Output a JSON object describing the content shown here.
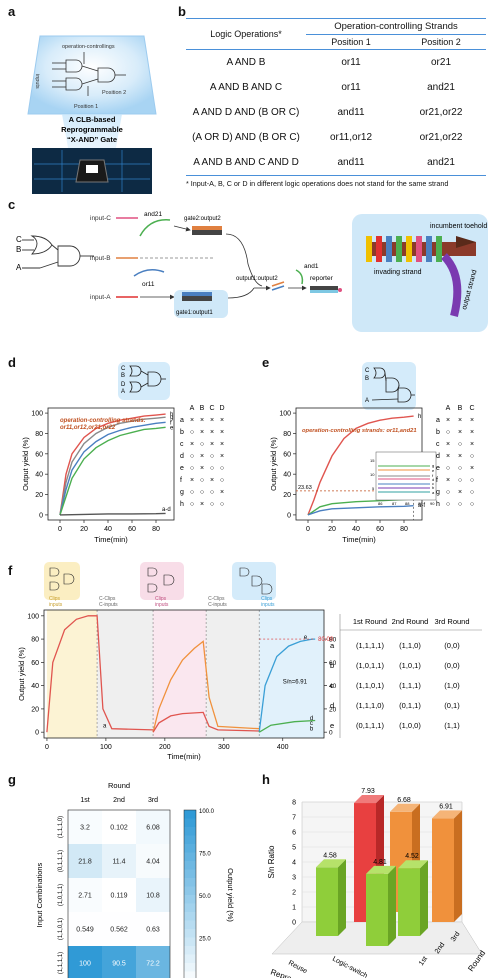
{
  "labels": [
    "a",
    "b",
    "c",
    "d",
    "e",
    "f",
    "g",
    "h"
  ],
  "panel_a": {
    "top_text": "operation-controllings",
    "inputs_text": "inputs",
    "pos2": "Position 2",
    "pos1": "Position 1",
    "caption_lines": [
      "A CLB-based",
      "Reprogrammable",
      "“X-AND” Gate"
    ]
  },
  "panel_b": {
    "header_col1": "Logic Operations*",
    "header_span": "Operation-controlling Strands",
    "header_pos1": "Position 1",
    "header_pos2": "Position 2",
    "rows": [
      [
        "A AND B",
        "or11",
        "or21"
      ],
      [
        "A AND B AND C",
        "or11",
        "and21"
      ],
      [
        "A AND D AND (B OR C)",
        "and11",
        "or21,or22"
      ],
      [
        "(A OR D) AND (B OR C)",
        "or11,or12",
        "or21,or22"
      ],
      [
        "A AND B AND C AND D",
        "and11",
        "and21"
      ]
    ],
    "footnote": "* Input-A, B, C or D in different logic operations does not stand for the same strand"
  },
  "panel_c": {
    "input_c": "input-C",
    "input_b": "input-B",
    "input_a": "input-A",
    "and21": "and21",
    "or11": "or11",
    "gate2": "gate2:output2",
    "gate1": "gate1:output1",
    "output12": "output1:output2",
    "and1": "and1",
    "reporter": "reporter",
    "incumbent": "incumbent toehold",
    "invading": "invading strand",
    "output_strand": "output strand",
    "gate_c": "C",
    "gate_b": "B",
    "gate_a": "A"
  },
  "panel_d": {
    "annotation_l1": "operation-controlling strands:",
    "annotation_l2": "or11,or12,or21,or22",
    "gate_inputs": [
      "C",
      "B",
      "D",
      "A"
    ],
    "table_header": [
      "A",
      "B",
      "C",
      "D"
    ],
    "table_rows": [
      [
        "a",
        "×",
        "×",
        "×",
        "×"
      ],
      [
        "b",
        "○",
        "×",
        "×",
        "×"
      ],
      [
        "c",
        "×",
        "○",
        "×",
        "×"
      ],
      [
        "d",
        "○",
        "×",
        "○",
        "×"
      ],
      [
        "e",
        "○",
        "×",
        "○",
        "○"
      ],
      [
        "f",
        "×",
        "○",
        "×",
        "○"
      ],
      [
        "g",
        "○",
        "○",
        "○",
        "×"
      ],
      [
        "h",
        "○",
        "×",
        "○",
        "○"
      ]
    ],
    "curve_labels": [
      "h",
      "g",
      "f",
      "e",
      "a-d"
    ]
  },
  "panel_e": {
    "annotation": "operation-controlling strands: or11,and21",
    "gate_inputs": [
      "C",
      "B",
      "A"
    ],
    "table_header": [
      "A",
      "B",
      "C"
    ],
    "table_rows": [
      [
        "a",
        "×",
        "×",
        "×"
      ],
      [
        "b",
        "○",
        "×",
        "×"
      ],
      [
        "c",
        "×",
        "○",
        "×"
      ],
      [
        "d",
        "×",
        "×",
        "○"
      ],
      [
        "e",
        "○",
        "○",
        "×"
      ],
      [
        "f",
        "×",
        "○",
        "○"
      ],
      [
        "g",
        "○",
        "×",
        "○"
      ],
      [
        "h",
        "○",
        "○",
        "○"
      ]
    ],
    "ref_value": "23.63",
    "inset_ticks": [
      "86",
      "87",
      "88",
      "89",
      "90"
    ],
    "inset_yticks": [
      "15",
      "10",
      "5"
    ],
    "inset_labels": [
      "g",
      "e",
      "f",
      "d",
      "c",
      "b",
      "a"
    ],
    "curve_labels": [
      "h",
      "g",
      "a-f"
    ]
  },
  "panel_f": {
    "segment_top_labels": [
      "Clips\ninputs",
      "C-Clips\nC-inputs",
      "Clips\ninputs",
      "C-Clips\nC-inputs",
      "Clips\ninputs"
    ],
    "value_80": "80.00",
    "sn_label": "S/n=6.91",
    "curve_labels_1": "a",
    "curve_labels_3": [
      "e",
      "d",
      "c",
      "b"
    ],
    "right_ticks": [
      "80",
      "60",
      "40",
      "20",
      "0"
    ],
    "table_header": [
      "1st Round",
      "2nd Round",
      "3rd Round"
    ],
    "table_rows": [
      [
        "a",
        "(1,1,1,1)",
        "(1,1,0)",
        "(0,0)"
      ],
      [
        "b",
        "(1,0,1,1)",
        "(1,0,1)",
        "(0,0)"
      ],
      [
        "c",
        "(1,1,0,1)",
        "(1,1,1)",
        "(1,0)"
      ],
      [
        "d",
        "(1,1,1,0)",
        "(0,1,1)",
        "(0,1)"
      ],
      [
        "e",
        "(0,1,1,1)",
        "(1,0,0)",
        "(1,1)"
      ]
    ]
  },
  "panel_g": {
    "heatmap_values": [
      [
        3.2,
        0.102,
        6.08
      ],
      [
        21.8,
        11.4,
        4.04
      ],
      [
        2.71,
        0.119,
        10.8
      ],
      [
        0.549,
        0.562,
        0.63
      ],
      [
        100,
        90.5,
        72.2
      ]
    ],
    "heatmap_text": [
      [
        "3.2",
        "0.102",
        "6.08"
      ],
      [
        "21.8",
        "11.4",
        "4.04"
      ],
      [
        "2.71",
        "0.119",
        "10.8"
      ],
      [
        "0.549",
        "0.562",
        "0.63"
      ],
      [
        "100",
        "90.5",
        "72.2"
      ]
    ],
    "row_labels": [
      "(1,1,1,0)",
      "(0,1,1,1)",
      "(1,0,1,1)",
      "(1,1,0,1)",
      "(1,1,1,1)"
    ],
    "col_labels": [
      "1st",
      "2nd",
      "3rd"
    ],
    "round_label": "Round",
    "ylabel": "Input Combinations",
    "colorbar_label": "Output yield (%)",
    "colorbar_ticks": [
      "100.0",
      "75.0",
      "50.0",
      "25.0",
      "0.0"
    ]
  },
  "panel_h": {
    "bar_labels": [
      "7.93",
      "6.68",
      "6.91",
      "4.58",
      "4.81",
      "4.52"
    ],
    "yticks": [
      "8",
      "7",
      "6",
      "5",
      "4",
      "3",
      "2",
      "1",
      "0"
    ],
    "ylabel": "S/n Ratio",
    "axis_reprogram": "Reprogram",
    "axis_round": "Round",
    "reuse": "Reuse",
    "logic_switch": "Logic-switch",
    "rounds": [
      "1st",
      "2nd",
      "3rd"
    ]
  },
  "chart_data": [
    {
      "type": "line",
      "panel": "d",
      "xlabel": "Time(min)",
      "ylabel": "Output yield (%)",
      "xlim": [
        -10,
        95
      ],
      "ylim": [
        -5,
        105
      ],
      "xticks": [
        0,
        20,
        40,
        60,
        80
      ],
      "yticks": [
        0,
        20,
        40,
        60,
        80,
        100
      ],
      "series": [
        {
          "name": "h",
          "color": "#e0554f",
          "x": [
            0,
            5,
            10,
            20,
            30,
            40,
            50,
            60,
            70,
            80,
            88
          ],
          "y": [
            0,
            40,
            60,
            76,
            85,
            90,
            93,
            95,
            97,
            98,
            99
          ]
        },
        {
          "name": "g",
          "color": "#8a8a8a",
          "x": [
            0,
            5,
            10,
            20,
            30,
            40,
            50,
            60,
            70,
            80,
            88
          ],
          "y": [
            0,
            32,
            52,
            70,
            80,
            86,
            90,
            92,
            94,
            95,
            96
          ]
        },
        {
          "name": "f",
          "color": "#4a7fc0",
          "x": [
            0,
            5,
            10,
            20,
            30,
            40,
            50,
            60,
            70,
            80,
            88
          ],
          "y": [
            0,
            25,
            44,
            62,
            72,
            79,
            83,
            86,
            88,
            90,
            91
          ]
        },
        {
          "name": "e",
          "color": "#4caf50",
          "x": [
            0,
            5,
            10,
            20,
            30,
            40,
            50,
            60,
            70,
            80,
            88
          ],
          "y": [
            0,
            18,
            36,
            55,
            66,
            73,
            78,
            81,
            84,
            85,
            86
          ]
        },
        {
          "name": "a-d",
          "color": "#555555",
          "x": [
            0,
            20,
            40,
            60,
            80,
            88
          ],
          "y": [
            0,
            0.5,
            1,
            1,
            1.2,
            1.5
          ]
        }
      ]
    },
    {
      "type": "line",
      "panel": "e",
      "xlabel": "Time(min)",
      "ylabel": "Output yield (%)",
      "xlim": [
        -10,
        95
      ],
      "ylim": [
        -5,
        105
      ],
      "xticks": [
        0,
        20,
        40,
        60,
        80
      ],
      "yticks": [
        0,
        20,
        40,
        60,
        80,
        100
      ],
      "series": [
        {
          "name": "h",
          "color": "#e0554f",
          "x": [
            0,
            5,
            10,
            20,
            30,
            40,
            50,
            60,
            70,
            80,
            88
          ],
          "y": [
            0,
            15,
            32,
            58,
            75,
            85,
            90,
            93,
            95,
            96,
            97
          ]
        },
        {
          "name": "g",
          "color": "#4caf50",
          "x": [
            0,
            10,
            20,
            40,
            60,
            80,
            88
          ],
          "y": [
            0,
            8,
            11,
            13,
            14,
            15,
            15.5
          ]
        },
        {
          "name": "a-f",
          "color": "#4a7fc0",
          "x": [
            0,
            10,
            20,
            40,
            60,
            80,
            88
          ],
          "y": [
            0,
            4,
            6,
            7,
            8,
            8.5,
            9
          ]
        }
      ]
    },
    {
      "type": "line",
      "panel": "f",
      "xlabel": "Time(min)",
      "ylabel": "Output yield (%)",
      "xlim": [
        -5,
        470
      ],
      "ylim": [
        -5,
        105
      ],
      "xticks": [
        0,
        100,
        200,
        300,
        400
      ],
      "yticks": [
        0,
        20,
        40,
        60,
        80,
        100
      ],
      "series": [
        {
          "name": "a",
          "color": "#e0554f",
          "x": [
            0,
            10,
            30,
            50,
            70,
            85,
            95,
            110,
            180
          ],
          "y": [
            0,
            60,
            88,
            97,
            100,
            100,
            20,
            3,
            2
          ]
        },
        {
          "name": "round2 orange",
          "color": "#f0913c",
          "x": [
            180,
            190,
            210,
            230,
            250,
            265,
            275,
            290,
            360
          ],
          "y": [
            0,
            20,
            45,
            62,
            72,
            78,
            30,
            5,
            3
          ]
        },
        {
          "name": "round2 red",
          "color": "#e0554f",
          "x": [
            180,
            190,
            210,
            230,
            265,
            275,
            290,
            360
          ],
          "y": [
            0,
            8,
            14,
            16,
            17,
            5,
            2,
            1
          ]
        },
        {
          "name": "e",
          "color": "#3a9fd6",
          "x": [
            360,
            370,
            390,
            410,
            430,
            450,
            455
          ],
          "y": [
            0,
            40,
            65,
            74,
            78,
            80,
            80
          ]
        },
        {
          "name": "d",
          "color": "#4caf50",
          "x": [
            360,
            380,
            420,
            455
          ],
          "y": [
            0,
            6,
            9,
            10
          ]
        }
      ]
    },
    {
      "type": "heatmap",
      "panel": "g",
      "categories": [
        "1st",
        "2nd",
        "3rd"
      ],
      "rows": [
        "(1,1,1,0)",
        "(0,1,1,1)",
        "(1,0,1,1)",
        "(1,1,0,1)",
        "(1,1,1,1)"
      ],
      "values": [
        [
          3.2,
          0.102,
          6.08
        ],
        [
          21.8,
          11.4,
          4.04
        ],
        [
          2.71,
          0.119,
          10.8
        ],
        [
          0.549,
          0.562,
          0.63
        ],
        [
          100,
          90.5,
          72.2
        ]
      ],
      "xlabel": "Round",
      "ylabel": "Input Combinations",
      "colorbar": "Output yield (%)"
    },
    {
      "type": "bar",
      "panel": "h",
      "categories": [
        "Reuse 1st",
        "Reuse 2nd",
        "Reuse 3rd",
        "Logic-switch 1st",
        "Logic-switch 2nd",
        "Logic-switch 3rd"
      ],
      "values": [
        4.58,
        7.93,
        6.68,
        4.81,
        4.52,
        6.91
      ],
      "ylabel": "S/n Ratio",
      "ylim": [
        0,
        8
      ]
    }
  ]
}
